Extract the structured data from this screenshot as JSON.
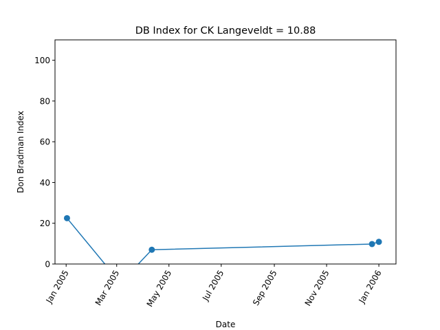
{
  "chart_data": {
    "type": "line",
    "title": "DB Index for CK Langeveldt = 10.88",
    "xlabel": "Date",
    "ylabel": "Don Bradman Index",
    "x_axis": "date",
    "xlim": [
      "2004-12-19",
      "2006-01-21"
    ],
    "ylim": [
      0,
      110
    ],
    "x_ticks": [
      {
        "date": "2005-01-01",
        "label": "Jan 2005"
      },
      {
        "date": "2005-03-01",
        "label": "Mar 2005"
      },
      {
        "date": "2005-05-01",
        "label": "May 2005"
      },
      {
        "date": "2005-07-01",
        "label": "Jul 2005"
      },
      {
        "date": "2005-09-01",
        "label": "Sep 2005"
      },
      {
        "date": "2005-11-01",
        "label": "Nov 2005"
      },
      {
        "date": "2006-01-01",
        "label": "Jan 2006"
      }
    ],
    "y_ticks": [
      0,
      20,
      40,
      60,
      80,
      100
    ],
    "grid": false,
    "series": [
      {
        "color": "#1f77b4",
        "marker": "circle",
        "points": [
          {
            "x": "2005-01-02",
            "y": 22.5
          },
          {
            "x": "2005-02-25",
            "y": -5.0
          },
          {
            "x": "2005-03-15",
            "y": -5.0
          },
          {
            "x": "2005-04-11",
            "y": 7.0
          },
          {
            "x": "2005-12-24",
            "y": 9.8
          },
          {
            "x": "2006-01-01",
            "y": 10.88
          }
        ]
      }
    ]
  }
}
